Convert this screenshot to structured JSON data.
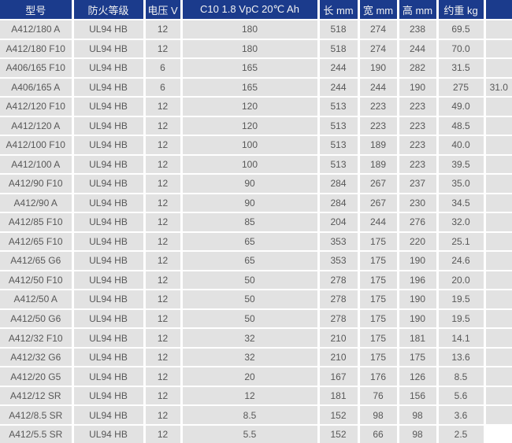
{
  "chart_data": {
    "type": "table",
    "title": "Battery model specification table",
    "columns": [
      "型号",
      "防火等级",
      "电压 V",
      "C10 1.8 VpC 20℃ Ah",
      "长 mm",
      "宽 mm",
      "高 mm",
      "约重 kg",
      ""
    ],
    "rows": [
      [
        "A412/180 A",
        "UL94 HB",
        "12",
        "180",
        "518",
        "274",
        "238",
        "69.5",
        ""
      ],
      [
        "A412/180 F10",
        "UL94 HB",
        "12",
        "180",
        "518",
        "274",
        "244",
        "70.0",
        ""
      ],
      [
        "A406/165 F10",
        "UL94 HB",
        "6",
        "165",
        "244",
        "190",
        "282",
        "31.5",
        ""
      ],
      [
        "A406/165 A",
        "UL94 HB",
        "6",
        "165",
        "244",
        "244",
        "190",
        "275",
        "31.0"
      ],
      [
        "A412/120 F10",
        "UL94 HB",
        "12",
        "120",
        "513",
        "223",
        "223",
        "49.0",
        ""
      ],
      [
        "A412/120 A",
        "UL94 HB",
        "12",
        "120",
        "513",
        "223",
        "223",
        "48.5",
        ""
      ],
      [
        "A412/100 F10",
        "UL94 HB",
        "12",
        "100",
        "513",
        "189",
        "223",
        "40.0",
        ""
      ],
      [
        "A412/100 A",
        "UL94 HB",
        "12",
        "100",
        "513",
        "189",
        "223",
        "39.5",
        ""
      ],
      [
        "A412/90 F10",
        "UL94 HB",
        "12",
        "90",
        "284",
        "267",
        "237",
        "35.0",
        ""
      ],
      [
        "A412/90 A",
        "UL94 HB",
        "12",
        "90",
        "284",
        "267",
        "230",
        "34.5",
        ""
      ],
      [
        "A412/85 F10",
        "UL94 HB",
        "12",
        "85",
        "204",
        "244",
        "276",
        "32.0",
        ""
      ],
      [
        "A412/65 F10",
        "UL94 HB",
        "12",
        "65",
        "353",
        "175",
        "220",
        "25.1",
        ""
      ],
      [
        "A412/65 G6",
        "UL94 HB",
        "12",
        "65",
        "353",
        "175",
        "190",
        "24.6",
        ""
      ],
      [
        "A412/50 F10",
        "UL94 HB",
        "12",
        "50",
        "278",
        "175",
        "196",
        "20.0",
        ""
      ],
      [
        "A412/50 A",
        "UL94 HB",
        "12",
        "50",
        "278",
        "175",
        "190",
        "19.5",
        ""
      ],
      [
        "A412/50 G6",
        "UL94 HB",
        "12",
        "50",
        "278",
        "175",
        "190",
        "19.5",
        ""
      ],
      [
        "A412/32 F10",
        "UL94 HB",
        "12",
        "32",
        "210",
        "175",
        "181",
        "14.1",
        ""
      ],
      [
        "A412/32 G6",
        "UL94 HB",
        "12",
        "32",
        "210",
        "175",
        "175",
        "13.6",
        ""
      ],
      [
        "A412/20 G5",
        "UL94 HB",
        "12",
        "20",
        "167",
        "176",
        "126",
        "8.5",
        ""
      ],
      [
        "A412/12 SR",
        "UL94 HB",
        "12",
        "12",
        "181",
        "76",
        "156",
        "5.6",
        ""
      ],
      [
        "A412/8.5 SR",
        "UL94 HB",
        "12",
        "8.5",
        "152",
        "98",
        "98",
        "3.6",
        ""
      ],
      [
        "A412/5.5 SR",
        "UL94 HB",
        "12",
        "5.5",
        "152",
        "66",
        "98",
        "2.5",
        ""
      ]
    ],
    "layout": {
      "grid": "white 2-3px separators",
      "header_position": "top",
      "alignment": "center"
    }
  },
  "colors": {
    "header_bg": "#1b3b8c",
    "header_text": "#f2f2f2",
    "row_bg": "#e2e2e2",
    "grid": "#ffffff",
    "cell_text": "#585858"
  }
}
